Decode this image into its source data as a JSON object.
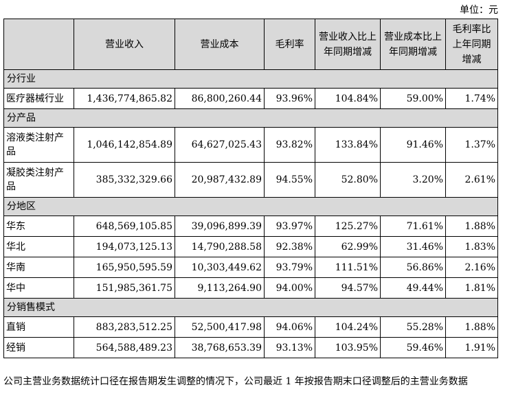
{
  "unit_label": "单位：元",
  "headers": [
    "",
    "营业收入",
    "营业成本",
    "毛利率",
    "营业收入比上年同期增减",
    "营业成本比上年同期增减",
    "毛利率比上年同期增减"
  ],
  "sections": [
    {
      "title": "分行业",
      "rows": [
        {
          "label": "医疗器械行业",
          "revenue": "1,436,774,865.82",
          "cost": "86,800,260.44",
          "margin": "93.96%",
          "rev_change": "104.84%",
          "cost_change": "59.00%",
          "margin_change": "1.74%"
        }
      ]
    },
    {
      "title": "分产品",
      "rows": [
        {
          "label": "溶液类注射产品",
          "revenue": "1,046,142,854.89",
          "cost": "64,627,025.43",
          "margin": "93.82%",
          "rev_change": "133.84%",
          "cost_change": "91.46%",
          "margin_change": "1.37%"
        },
        {
          "label": "凝胶类注射产品",
          "revenue": "385,332,329.66",
          "cost": "20,987,432.89",
          "margin": "94.55%",
          "rev_change": "52.80%",
          "cost_change": "3.20%",
          "margin_change": "2.61%"
        }
      ]
    },
    {
      "title": "分地区",
      "rows": [
        {
          "label": "华东",
          "revenue": "648,569,105.85",
          "cost": "39,096,899.39",
          "margin": "93.97%",
          "rev_change": "125.27%",
          "cost_change": "71.61%",
          "margin_change": "1.88%"
        },
        {
          "label": "华北",
          "revenue": "194,073,125.13",
          "cost": "14,790,288.58",
          "margin": "92.38%",
          "rev_change": "62.99%",
          "cost_change": "31.46%",
          "margin_change": "1.83%"
        },
        {
          "label": "华南",
          "revenue": "165,950,595.59",
          "cost": "10,303,449.62",
          "margin": "93.79%",
          "rev_change": "111.51%",
          "cost_change": "56.86%",
          "margin_change": "2.16%"
        },
        {
          "label": "华中",
          "revenue": "151,985,361.75",
          "cost": "9,113,264.90",
          "margin": "94.00%",
          "rev_change": "94.57%",
          "cost_change": "49.44%",
          "margin_change": "1.81%"
        }
      ]
    },
    {
      "title": "分销售模式",
      "rows": [
        {
          "label": "直销",
          "revenue": "883,283,512.25",
          "cost": "52,500,417.98",
          "margin": "94.06%",
          "rev_change": "104.24%",
          "cost_change": "55.28%",
          "margin_change": "1.88%"
        },
        {
          "label": "经销",
          "revenue": "564,588,489.23",
          "cost": "38,768,653.39",
          "margin": "93.13%",
          "rev_change": "103.95%",
          "cost_change": "59.46%",
          "margin_change": "1.91%"
        }
      ]
    }
  ],
  "footnote": "公司主营业务数据统计口径在报告期发生调整的情况下，公司最近 1 年按报告期末口径调整后的主营业务数据"
}
